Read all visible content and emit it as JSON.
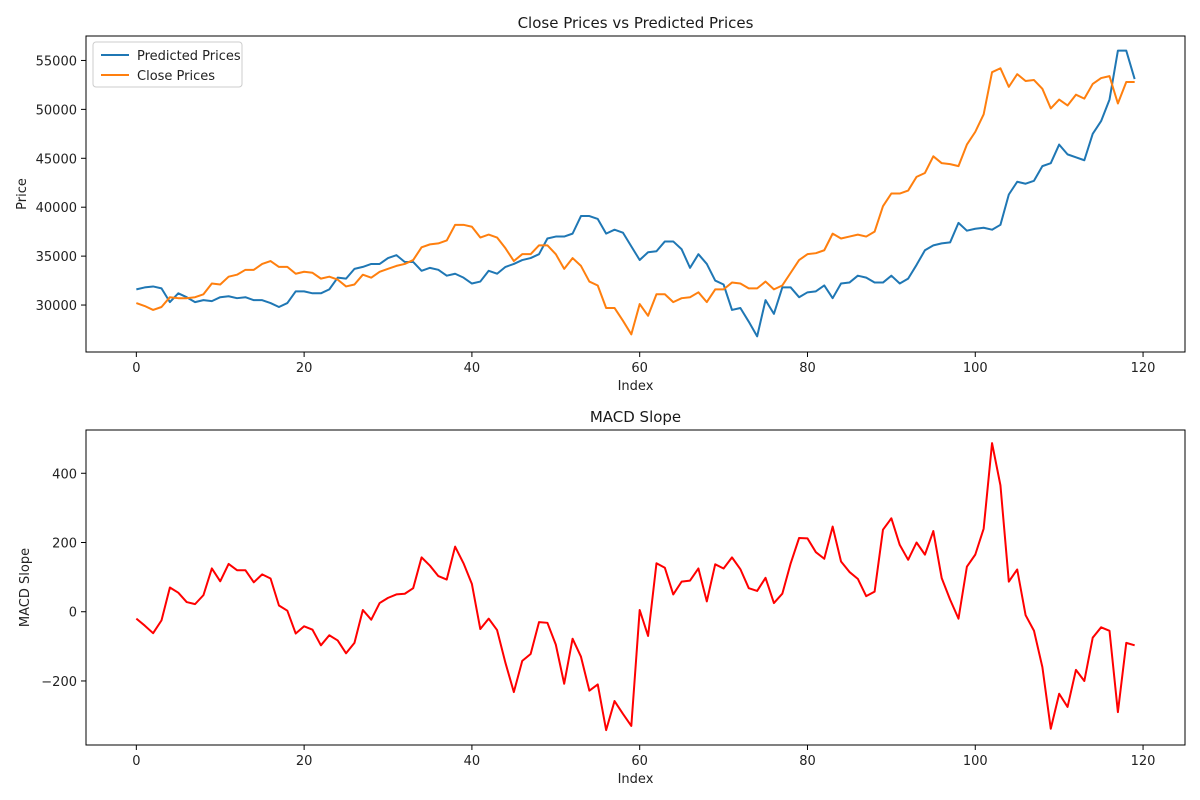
{
  "chart_data": [
    {
      "type": "line",
      "title": "Close Prices vs Predicted Prices",
      "xlabel": "Index",
      "ylabel": "Price",
      "xlim": [
        -6,
        125
      ],
      "ylim": [
        25200,
        57500
      ],
      "xticks": [
        0,
        20,
        40,
        60,
        80,
        100,
        120
      ],
      "xtick_labels": [
        "0",
        "20",
        "40",
        "60",
        "80",
        "100",
        "120"
      ],
      "yticks": [
        30000,
        35000,
        40000,
        45000,
        50000,
        55000
      ],
      "ytick_labels": [
        "30000",
        "35000",
        "40000",
        "45000",
        "50000",
        "55000"
      ],
      "grid": false,
      "legend": "top-left",
      "series": [
        {
          "name": "Predicted Prices",
          "color": "#1f77b4",
          "x": [
            0,
            1,
            2,
            3,
            4,
            5,
            6,
            7,
            8,
            9,
            10,
            11,
            12,
            13,
            14,
            15,
            16,
            17,
            18,
            19,
            20,
            21,
            22,
            23,
            24,
            25,
            26,
            27,
            28,
            29,
            30,
            31,
            32,
            33,
            34,
            35,
            36,
            37,
            38,
            39,
            40,
            41,
            42,
            43,
            44,
            45,
            46,
            47,
            48,
            49,
            50,
            51,
            52,
            53,
            54,
            55,
            56,
            57,
            58,
            59,
            60,
            61,
            62,
            63,
            64,
            65,
            66,
            67,
            68,
            69,
            70,
            71,
            72,
            73,
            74,
            75,
            76,
            77,
            78,
            79,
            80,
            81,
            82,
            83,
            84,
            85,
            86,
            87,
            88,
            89,
            90,
            91,
            92,
            93,
            94,
            95,
            96,
            97,
            98,
            99,
            100,
            101,
            102,
            103,
            104,
            105,
            106,
            107,
            108,
            109,
            110,
            111,
            112,
            113,
            114,
            115,
            116,
            117,
            118,
            119
          ],
          "values": [
            31600,
            31800,
            31900,
            31700,
            30300,
            31200,
            30800,
            30300,
            30500,
            30400,
            30800,
            30900,
            30700,
            30800,
            30500,
            30500,
            30200,
            29800,
            30200,
            31400,
            31400,
            31200,
            31200,
            31600,
            32800,
            32700,
            33700,
            33900,
            34200,
            34200,
            34800,
            35100,
            34400,
            34400,
            33500,
            33800,
            33600,
            33000,
            33200,
            32800,
            32200,
            32400,
            33500,
            33200,
            33900,
            34200,
            34600,
            34800,
            35200,
            36800,
            37000,
            37000,
            37300,
            39100,
            39100,
            38800,
            37300,
            37700,
            37400,
            36000,
            34600,
            35400,
            35500,
            36500,
            36500,
            35700,
            33800,
            35200,
            34200,
            32500,
            32100,
            29500,
            29700,
            28300,
            26800,
            30500,
            29100,
            31800,
            31800,
            30800,
            31300,
            31400,
            32000,
            30700,
            32200,
            32300,
            33000,
            32800,
            32300,
            32300,
            33000,
            32200,
            32700,
            34100,
            35600,
            36100,
            36300,
            36400,
            38400,
            37600,
            37800,
            37900,
            37700,
            38200,
            41300,
            42600,
            42400,
            42700,
            44200,
            44500,
            46400,
            45400,
            45100,
            44800,
            47500,
            48800,
            51000,
            56000,
            56000,
            53100
          ]
        },
        {
          "name": "Close Prices",
          "color": "#ff7f0e",
          "x": [
            0,
            1,
            2,
            3,
            4,
            5,
            6,
            7,
            8,
            9,
            10,
            11,
            12,
            13,
            14,
            15,
            16,
            17,
            18,
            19,
            20,
            21,
            22,
            23,
            24,
            25,
            26,
            27,
            28,
            29,
            30,
            31,
            32,
            33,
            34,
            35,
            36,
            37,
            38,
            39,
            40,
            41,
            42,
            43,
            44,
            45,
            46,
            47,
            48,
            49,
            50,
            51,
            52,
            53,
            54,
            55,
            56,
            57,
            58,
            59,
            60,
            61,
            62,
            63,
            64,
            65,
            66,
            67,
            68,
            69,
            70,
            71,
            72,
            73,
            74,
            75,
            76,
            77,
            78,
            79,
            80,
            81,
            82,
            83,
            84,
            85,
            86,
            87,
            88,
            89,
            90,
            91,
            92,
            93,
            94,
            95,
            96,
            97,
            98,
            99,
            100,
            101,
            102,
            103,
            104,
            105,
            106,
            107,
            108,
            109,
            110,
            111,
            112,
            113,
            114,
            115,
            116,
            117,
            118,
            119
          ],
          "values": [
            30200,
            29900,
            29500,
            29800,
            30800,
            30700,
            30700,
            30800,
            31100,
            32200,
            32100,
            32900,
            33100,
            33600,
            33600,
            34200,
            34500,
            33900,
            33900,
            33200,
            33400,
            33300,
            32700,
            32900,
            32600,
            31900,
            32100,
            33100,
            32800,
            33400,
            33700,
            34000,
            34200,
            34600,
            35900,
            36200,
            36300,
            36600,
            38200,
            38200,
            38000,
            36900,
            37200,
            36900,
            35800,
            34500,
            35200,
            35200,
            36100,
            36100,
            35200,
            33700,
            34800,
            34000,
            32400,
            32000,
            29700,
            29700,
            28400,
            27000,
            30100,
            28900,
            31100,
            31100,
            30300,
            30700,
            30800,
            31300,
            30300,
            31600,
            31600,
            32300,
            32200,
            31700,
            31700,
            32400,
            31600,
            32000,
            33300,
            34600,
            35200,
            35300,
            35600,
            37300,
            36800,
            37000,
            37200,
            37000,
            37500,
            40100,
            41400,
            41400,
            41700,
            43100,
            43500,
            45200,
            44500,
            44400,
            44200,
            46400,
            47700,
            49500,
            53800,
            54200,
            52300,
            53600,
            52900,
            53000,
            52100,
            50100,
            51000,
            50400,
            51500,
            51100,
            52600,
            53200,
            53400,
            50600,
            52800,
            52800
          ]
        }
      ]
    },
    {
      "type": "line",
      "title": "MACD Slope",
      "xlabel": "Index",
      "ylabel": "MACD Slope",
      "xlim": [
        -6,
        125
      ],
      "ylim": [
        -385,
        525
      ],
      "xticks": [
        0,
        20,
        40,
        60,
        80,
        100,
        120
      ],
      "xtick_labels": [
        "0",
        "20",
        "40",
        "60",
        "80",
        "100",
        "120"
      ],
      "yticks": [
        -200,
        0,
        200,
        400
      ],
      "ytick_labels": [
        "−200",
        "0",
        "200",
        "400"
      ],
      "grid": false,
      "series": [
        {
          "color": "#ff0000",
          "x": [
            0,
            1,
            2,
            3,
            4,
            5,
            6,
            7,
            8,
            9,
            10,
            11,
            12,
            13,
            14,
            15,
            16,
            17,
            18,
            19,
            20,
            21,
            22,
            23,
            24,
            25,
            26,
            27,
            28,
            29,
            30,
            31,
            32,
            33,
            34,
            35,
            36,
            37,
            38,
            39,
            40,
            41,
            42,
            43,
            44,
            45,
            46,
            47,
            48,
            49,
            50,
            51,
            52,
            53,
            54,
            55,
            56,
            57,
            58,
            59,
            60,
            61,
            62,
            63,
            64,
            65,
            66,
            67,
            68,
            69,
            70,
            71,
            72,
            73,
            74,
            75,
            76,
            77,
            78,
            79,
            80,
            81,
            82,
            83,
            84,
            85,
            86,
            87,
            88,
            89,
            90,
            91,
            92,
            93,
            94,
            95,
            96,
            97,
            98,
            99,
            100,
            101,
            102,
            103,
            104,
            105,
            106,
            107,
            108,
            109,
            110,
            111,
            112,
            113,
            114,
            115,
            116,
            117,
            118,
            119
          ],
          "values": [
            -20,
            -40,
            -62,
            -25,
            70,
            55,
            28,
            22,
            48,
            125,
            88,
            138,
            120,
            120,
            85,
            108,
            96,
            18,
            3,
            -63,
            -42,
            -52,
            -97,
            -68,
            -83,
            -120,
            -90,
            5,
            -23,
            25,
            40,
            50,
            52,
            68,
            157,
            133,
            103,
            93,
            188,
            140,
            80,
            -50,
            -20,
            -53,
            -148,
            -232,
            -142,
            -122,
            -30,
            -32,
            -95,
            -208,
            -78,
            -130,
            -228,
            -210,
            -342,
            -258,
            -295,
            -330,
            5,
            -70,
            140,
            127,
            50,
            87,
            90,
            125,
            30,
            137,
            125,
            157,
            123,
            68,
            60,
            98,
            25,
            52,
            140,
            213,
            212,
            172,
            153,
            246,
            145,
            115,
            95,
            45,
            58,
            237,
            270,
            193,
            150,
            200,
            165,
            233,
            97,
            35,
            -20,
            130,
            165,
            240,
            487,
            365,
            87,
            122,
            -10,
            -55,
            -160,
            -338,
            -237,
            -275,
            -168,
            -200,
            -75,
            -45,
            -55,
            -290,
            -90,
            -97
          ]
        }
      ]
    }
  ]
}
